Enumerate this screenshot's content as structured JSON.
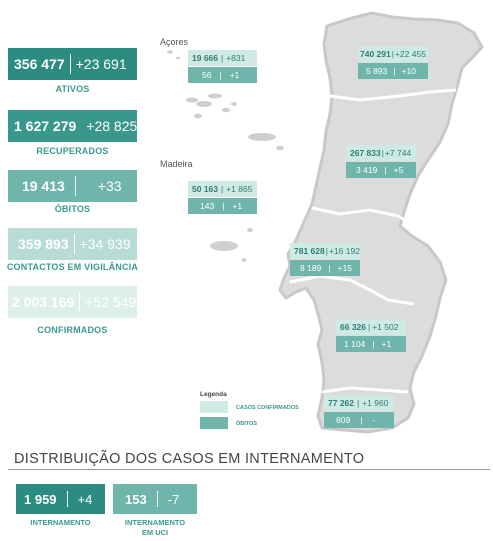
{
  "stats": {
    "ativos": {
      "value": "356 477",
      "change": "+23 691",
      "label": "ATIVOS"
    },
    "recuperados": {
      "value": "1 627 279",
      "change": "+28 825",
      "label": "RECUPERADOS"
    },
    "obitos": {
      "value": "19 413",
      "change": "+33",
      "label": "ÓBITOS"
    },
    "contactos": {
      "value": "359 893",
      "change": "+34 939",
      "label": "CONTACTOS EM VIGILÂNCIA"
    },
    "confirmados": {
      "value": "2 003 169",
      "change": "+52 549",
      "label": "CONFIRMADOS"
    }
  },
  "islands": {
    "acores_label": "Açores",
    "madeira_label": "Madeira"
  },
  "regions": {
    "acores": {
      "cases": "19 666",
      "cases_change": "+831",
      "deaths": "56",
      "deaths_change": "+1"
    },
    "madeira": {
      "cases": "50 163",
      "cases_change": "+1 865",
      "deaths": "143",
      "deaths_change": "+1"
    },
    "norte": {
      "cases": "740 291",
      "cases_change": "+22 455",
      "deaths": "5 893",
      "deaths_change": "+10"
    },
    "centro": {
      "cases": "267 833",
      "cases_change": "+7 744",
      "deaths": "3 419",
      "deaths_change": "+5"
    },
    "lvt": {
      "cases": "781 628",
      "cases_change": "+16 192",
      "deaths": "8 189",
      "deaths_change": "+15"
    },
    "alentejo": {
      "cases": "66 326",
      "cases_change": "+1 502",
      "deaths": "1 104",
      "deaths_change": "+1"
    },
    "algarve": {
      "cases": "77 262",
      "cases_change": "+1 960",
      "deaths": "609",
      "deaths_change": "-"
    }
  },
  "legend": {
    "title": "Legenda",
    "cases_label": "CASOS CONFIRMADOS",
    "deaths_label": "ÓBITOS"
  },
  "hospital": {
    "title": "DISTRIBUIÇÃO DOS CASOS EM INTERNAMENTO",
    "internamento": {
      "value": "1 959",
      "change": "+4",
      "label": "INTERNAMENTO"
    },
    "uci": {
      "value": "153",
      "change": "-7",
      "label_line1": "INTERNAMENTO",
      "label_line2": "EM UCI"
    }
  },
  "colors": {
    "dark_teal": "#2d8c80",
    "mid_teal": "#6fb5ac",
    "light_teal": "#b7dcd6",
    "pale_teal": "#cfe9e4",
    "map_gray": "#d9d9d9"
  }
}
